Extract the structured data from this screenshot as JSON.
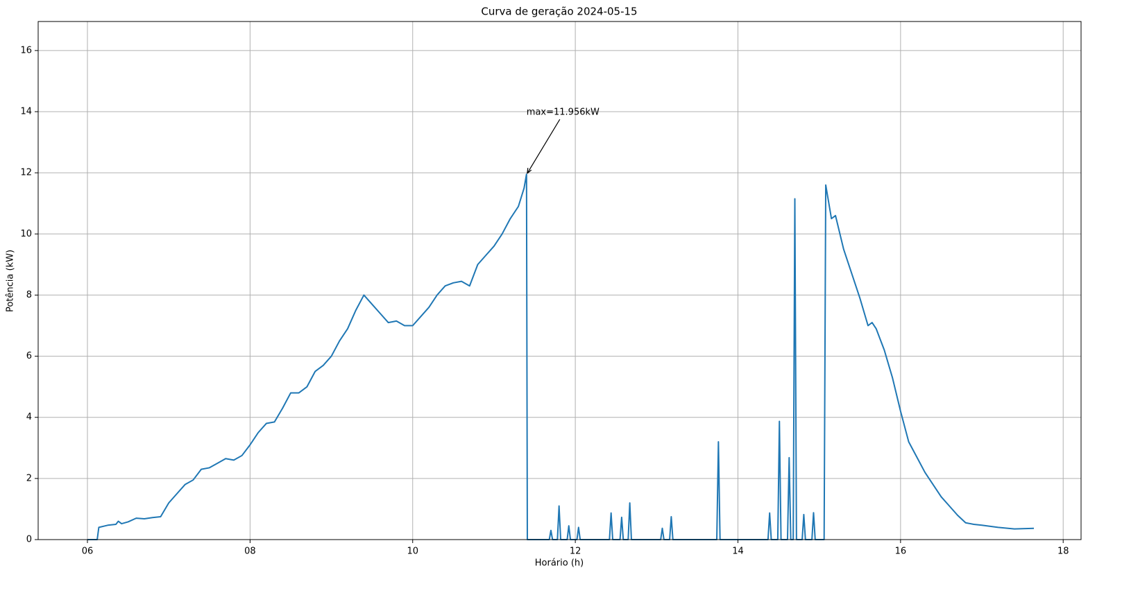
{
  "chart_data": {
    "type": "line",
    "title": "Curva de geração 2024-05-15",
    "x_label": "Horário (h)",
    "y_label": "Potência (kW)",
    "annotation": "max=11.956kW",
    "color": "#1f77b4",
    "grid": true,
    "xlim": [
      5.394,
      18.22
    ],
    "ylim": [
      0,
      16.95
    ],
    "xticks": [
      {
        "value": 6,
        "label": "06"
      },
      {
        "value": 8,
        "label": "08"
      },
      {
        "value": 10,
        "label": "10"
      },
      {
        "value": 12,
        "label": "12"
      },
      {
        "value": 14,
        "label": "14"
      },
      {
        "value": 16,
        "label": "16"
      },
      {
        "value": 18,
        "label": "18"
      }
    ],
    "yticks": [
      0,
      2,
      4,
      6,
      8,
      10,
      12,
      14,
      16
    ],
    "x": [
      6.0,
      6.12,
      6.14,
      6.25,
      6.35,
      6.38,
      6.42,
      6.5,
      6.6,
      6.7,
      6.8,
      6.9,
      7.0,
      7.1,
      7.2,
      7.3,
      7.4,
      7.5,
      7.6,
      7.7,
      7.8,
      7.9,
      8.0,
      8.1,
      8.2,
      8.3,
      8.4,
      8.5,
      8.6,
      8.7,
      8.8,
      8.9,
      9.0,
      9.1,
      9.2,
      9.3,
      9.4,
      9.5,
      9.6,
      9.7,
      9.8,
      9.9,
      10.0,
      10.1,
      10.2,
      10.3,
      10.4,
      10.5,
      10.6,
      10.7,
      10.8,
      10.9,
      11.0,
      11.1,
      11.2,
      11.3,
      11.37,
      11.4,
      11.41,
      11.68,
      11.7,
      11.72,
      11.78,
      11.8,
      11.82,
      11.9,
      11.92,
      11.94,
      12.02,
      12.04,
      12.06,
      12.42,
      12.44,
      12.46,
      12.55,
      12.57,
      12.59,
      12.65,
      12.67,
      12.69,
      13.05,
      13.07,
      13.09,
      13.16,
      13.18,
      13.2,
      13.74,
      13.76,
      13.78,
      14.37,
      14.39,
      14.41,
      14.49,
      14.51,
      14.53,
      14.61,
      14.63,
      14.65,
      14.68,
      14.7,
      14.72,
      14.79,
      14.81,
      14.83,
      14.91,
      14.93,
      14.95,
      15.06,
      15.08,
      15.15,
      15.2,
      15.3,
      15.4,
      15.5,
      15.6,
      15.65,
      15.7,
      15.8,
      15.9,
      16.0,
      16.1,
      16.2,
      16.3,
      16.4,
      16.5,
      16.6,
      16.7,
      16.8,
      16.9,
      17.0,
      17.2,
      17.4,
      17.64
    ],
    "values": [
      0,
      0,
      0.4,
      0.47,
      0.5,
      0.6,
      0.52,
      0.58,
      0.7,
      0.68,
      0.72,
      0.75,
      1.2,
      1.5,
      1.8,
      1.95,
      2.3,
      2.35,
      2.5,
      2.65,
      2.6,
      2.75,
      3.1,
      3.5,
      3.8,
      3.85,
      4.3,
      4.8,
      4.8,
      5.0,
      5.5,
      5.7,
      6.0,
      6.5,
      6.9,
      7.5,
      8.0,
      7.7,
      7.4,
      7.1,
      7.15,
      7.0,
      7.0,
      7.3,
      7.6,
      8.0,
      8.3,
      8.4,
      8.45,
      8.3,
      9.0,
      9.3,
      9.6,
      10.0,
      10.5,
      10.9,
      11.5,
      11.956,
      0,
      0,
      0.3,
      0,
      0,
      1.1,
      0,
      0,
      0.45,
      0,
      0,
      0.4,
      0,
      0,
      0.87,
      0,
      0,
      0.73,
      0,
      0,
      1.2,
      0,
      0,
      0.37,
      0,
      0,
      0.75,
      0,
      0,
      3.2,
      0,
      0,
      0.87,
      0,
      0,
      3.87,
      0,
      0,
      2.68,
      0,
      0,
      11.15,
      0,
      0,
      0.82,
      0,
      0,
      0.88,
      0,
      0,
      11.6,
      10.5,
      10.6,
      9.5,
      8.7,
      7.9,
      7.0,
      7.1,
      6.9,
      6.2,
      5.3,
      4.2,
      3.2,
      2.7,
      2.2,
      1.8,
      1.4,
      1.1,
      0.8,
      0.55,
      0.5,
      0.47,
      0.4,
      0.35,
      0.37
    ]
  }
}
